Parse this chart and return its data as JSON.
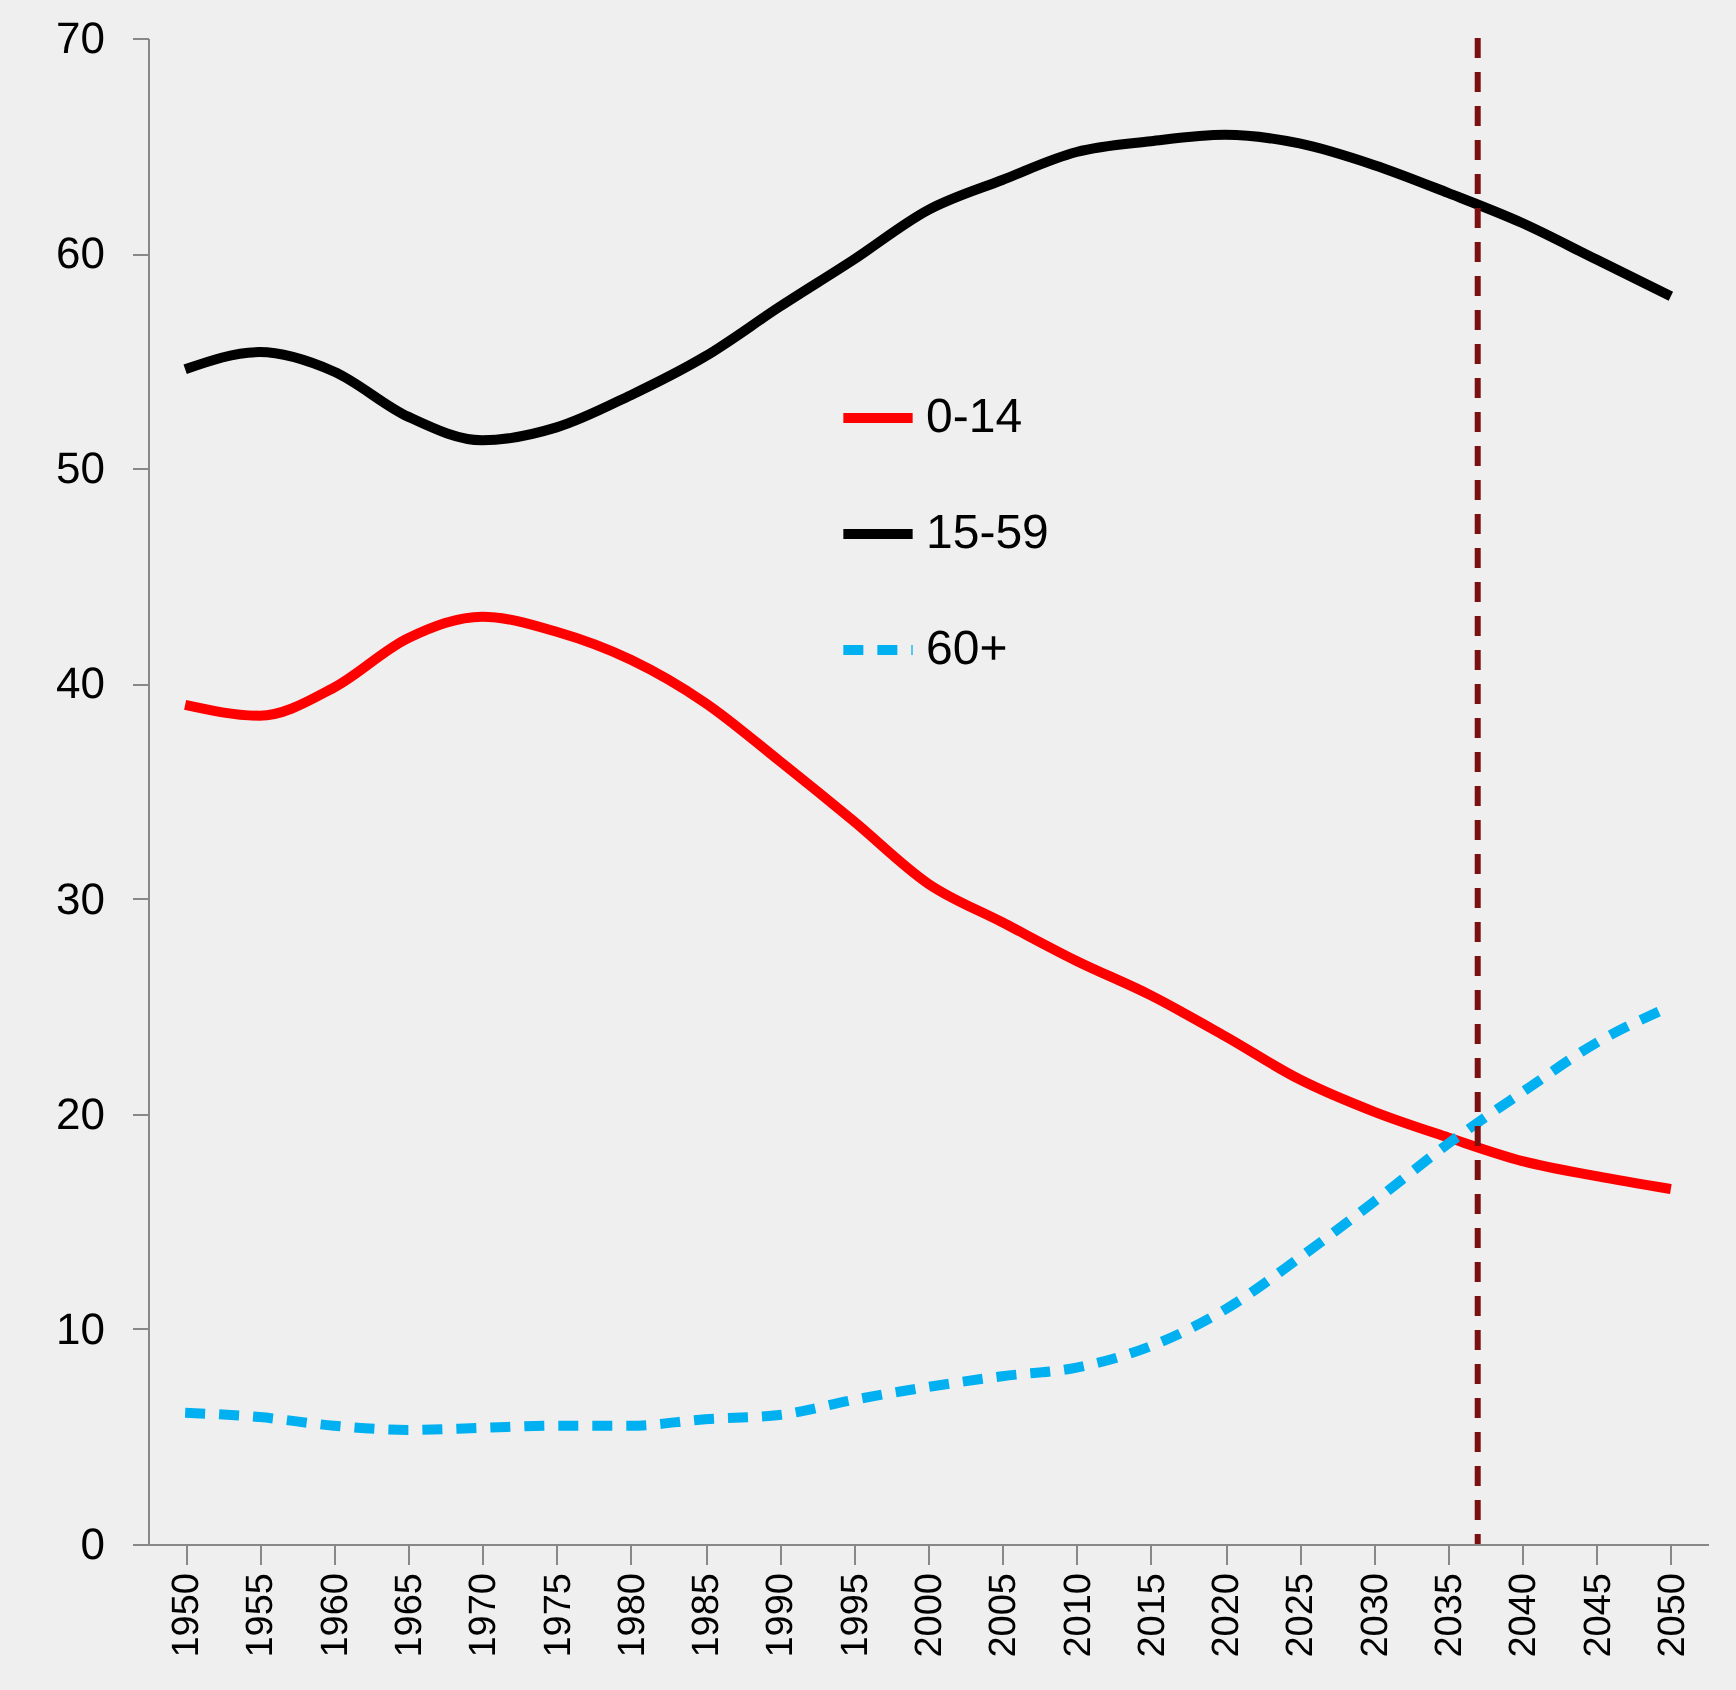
{
  "chart_data": {
    "type": "line",
    "x": [
      1950,
      1955,
      1960,
      1965,
      1970,
      1975,
      1980,
      1985,
      1990,
      1995,
      2000,
      2005,
      2010,
      2015,
      2020,
      2025,
      2030,
      2035,
      2040,
      2045,
      2050
    ],
    "series": [
      {
        "name": "0-14",
        "color": "#ff0000",
        "line_style": "solid",
        "values": [
          39.0,
          38.5,
          39.8,
          42.1,
          43.1,
          42.4,
          41.1,
          39.1,
          36.4,
          33.6,
          30.7,
          28.9,
          27.1,
          25.5,
          23.6,
          21.6,
          20.1,
          18.9,
          17.8,
          17.1,
          16.5
        ]
      },
      {
        "name": "15-59",
        "color": "#000000",
        "line_style": "solid",
        "values": [
          54.6,
          55.4,
          54.5,
          52.4,
          51.3,
          51.9,
          53.4,
          55.2,
          57.5,
          59.7,
          62.0,
          63.4,
          64.7,
          65.2,
          65.5,
          65.1,
          64.1,
          62.8,
          61.4,
          59.7,
          58.0
        ]
      },
      {
        "name": "60+",
        "color": "#00b0f0",
        "line_style": "dashed",
        "values": [
          6.1,
          5.9,
          5.5,
          5.3,
          5.4,
          5.5,
          5.5,
          5.8,
          6.0,
          6.7,
          7.3,
          7.8,
          8.2,
          9.2,
          10.9,
          13.3,
          15.9,
          18.6,
          21.0,
          23.3,
          25.0
        ]
      }
    ],
    "xlim": [
      1947.5,
      2052.5
    ],
    "xticks": [
      1950,
      1955,
      1960,
      1965,
      1970,
      1975,
      1980,
      1985,
      1990,
      1995,
      2000,
      2005,
      2010,
      2015,
      2020,
      2025,
      2030,
      2035,
      2040,
      2045,
      2050
    ],
    "ylim": [
      0,
      70
    ],
    "yticks": [
      0,
      10,
      20,
      30,
      40,
      50,
      60,
      70
    ],
    "ref_lines": [
      {
        "axis": "x",
        "value": 2037,
        "color": "#7b1010",
        "line_style": "dashed"
      }
    ],
    "grid": false,
    "legend": "top",
    "marker": "none"
  }
}
